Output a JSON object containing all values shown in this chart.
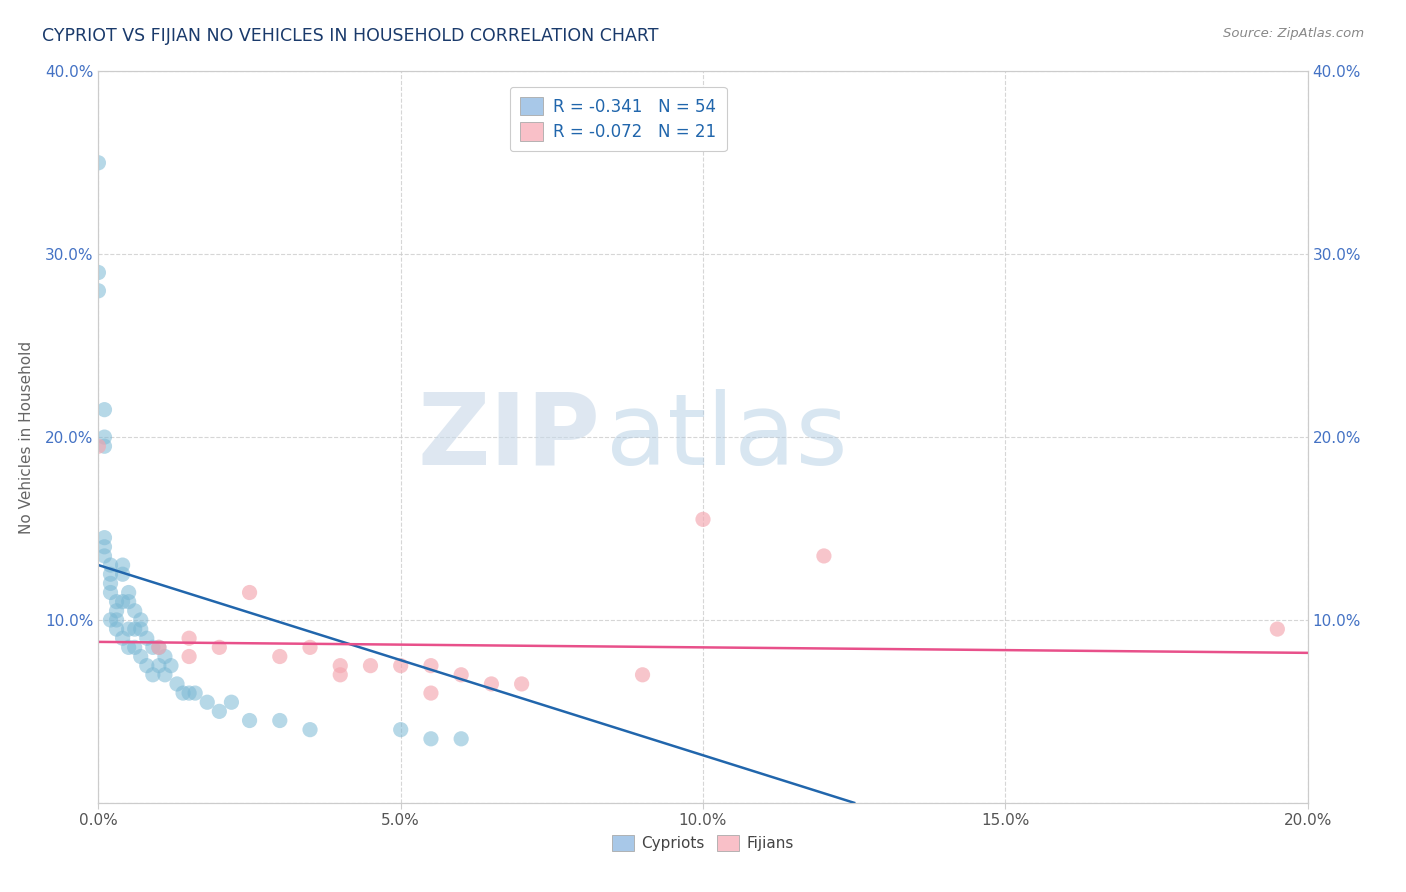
{
  "title": "CYPRIOT VS FIJIAN NO VEHICLES IN HOUSEHOLD CORRELATION CHART",
  "source": "Source: ZipAtlas.com",
  "xlim": [
    0.0,
    0.2
  ],
  "ylim": [
    0.0,
    0.4
  ],
  "cypriot_x": [
    0.0,
    0.0,
    0.0,
    0.001,
    0.001,
    0.001,
    0.001,
    0.001,
    0.001,
    0.002,
    0.002,
    0.002,
    0.002,
    0.002,
    0.003,
    0.003,
    0.003,
    0.003,
    0.004,
    0.004,
    0.004,
    0.004,
    0.005,
    0.005,
    0.005,
    0.005,
    0.006,
    0.006,
    0.006,
    0.007,
    0.007,
    0.007,
    0.008,
    0.008,
    0.009,
    0.009,
    0.01,
    0.01,
    0.011,
    0.011,
    0.012,
    0.013,
    0.014,
    0.015,
    0.016,
    0.018,
    0.02,
    0.022,
    0.025,
    0.03,
    0.035,
    0.05,
    0.055,
    0.06
  ],
  "cypriot_y": [
    0.35,
    0.29,
    0.28,
    0.215,
    0.2,
    0.195,
    0.145,
    0.14,
    0.135,
    0.13,
    0.125,
    0.12,
    0.115,
    0.1,
    0.11,
    0.105,
    0.1,
    0.095,
    0.13,
    0.125,
    0.11,
    0.09,
    0.115,
    0.11,
    0.095,
    0.085,
    0.105,
    0.095,
    0.085,
    0.1,
    0.095,
    0.08,
    0.09,
    0.075,
    0.085,
    0.07,
    0.085,
    0.075,
    0.08,
    0.07,
    0.075,
    0.065,
    0.06,
    0.06,
    0.06,
    0.055,
    0.05,
    0.055,
    0.045,
    0.045,
    0.04,
    0.04,
    0.035,
    0.035
  ],
  "fijian_x": [
    0.0,
    0.01,
    0.015,
    0.015,
    0.02,
    0.025,
    0.03,
    0.035,
    0.04,
    0.04,
    0.045,
    0.05,
    0.055,
    0.055,
    0.06,
    0.065,
    0.07,
    0.09,
    0.1,
    0.12,
    0.195
  ],
  "fijian_y": [
    0.195,
    0.085,
    0.09,
    0.08,
    0.085,
    0.115,
    0.08,
    0.085,
    0.075,
    0.07,
    0.075,
    0.075,
    0.075,
    0.06,
    0.07,
    0.065,
    0.065,
    0.07,
    0.155,
    0.135,
    0.095
  ],
  "cypriot_color": "#7bb8d4",
  "fijian_color": "#f4a7b0",
  "cypriot_line_color": "#2166ac",
  "fijian_line_color": "#e8508a",
  "legend_cypriot_color": "#a8c8e8",
  "legend_fijian_color": "#f9c0c8",
  "R_cypriot": -0.341,
  "N_cypriot": 54,
  "R_fijian": -0.072,
  "N_fijian": 21,
  "title_color": "#1a3a6b",
  "source_color": "#888888",
  "watermark_zip": "ZIP",
  "watermark_atlas": "atlas",
  "background_color": "#ffffff",
  "grid_color": "#cccccc",
  "tick_color_y": "#4472c4",
  "tick_color_x": "#555555"
}
